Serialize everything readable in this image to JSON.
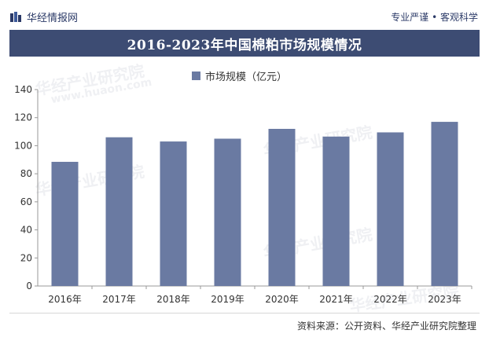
{
  "header": {
    "brand_name": "华经情报网",
    "tagline": "专业严谨 • 客观科学"
  },
  "watermarks": [
    {
      "text": "华经产业研究院"
    },
    {
      "text": "www.huaon.com"
    },
    {
      "text": "华经产业研究院"
    },
    {
      "text": "华经产业研究院"
    },
    {
      "text": "华经产业研究院"
    },
    {
      "text": "华经产业研究院"
    }
  ],
  "source_text": "资料来源：公开资料、华经产业研究院整理",
  "colors": {
    "title_bg": "#3d4c73",
    "bar": "#6a7aa2",
    "axis": "#999999",
    "brand": "#2b3a67"
  },
  "chart_data": {
    "type": "bar",
    "title": "2016-2023年中国棉粕市场规模情况",
    "legend": [
      "市场规模（亿元）"
    ],
    "categories": [
      "2016年",
      "2017年",
      "2018年",
      "2019年",
      "2020年",
      "2021年",
      "2022年",
      "2023年"
    ],
    "series": [
      {
        "name": "市场规模（亿元）",
        "values": [
          88.5,
          106,
          103,
          105,
          112,
          106.5,
          109.5,
          117
        ]
      }
    ],
    "ylim": [
      0,
      140
    ],
    "yticks": [
      0,
      20,
      40,
      60,
      80,
      100,
      120,
      140
    ],
    "xlabel": "",
    "ylabel": "",
    "grid": false
  }
}
